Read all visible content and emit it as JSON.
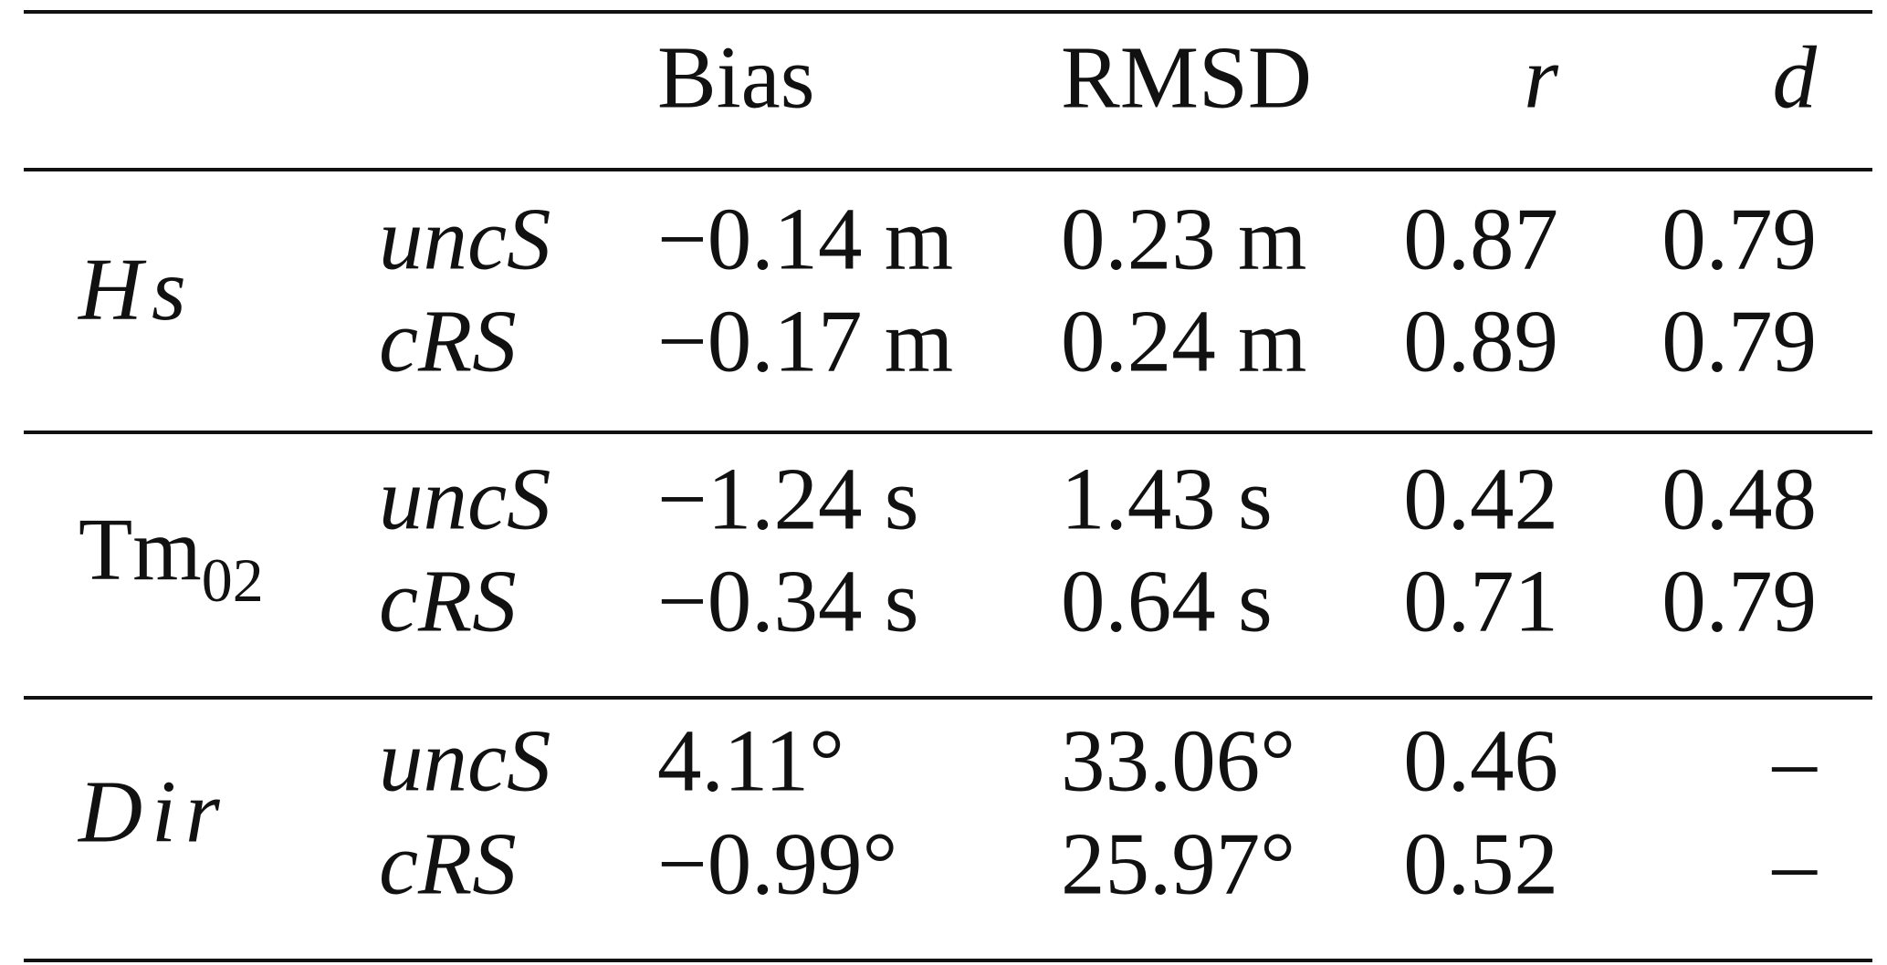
{
  "table": {
    "header": [
      "Bias",
      "RMSD",
      "r",
      "d"
    ],
    "groups": [
      {
        "label": "Hs",
        "rows": [
          {
            "method": "uncS",
            "cells": [
              "−0.14 m",
              "0.23 m",
              "0.87",
              "0.79"
            ]
          },
          {
            "method": "cRS",
            "cells": [
              "−0.17 m",
              "0.24 m",
              "0.89",
              "0.79"
            ]
          }
        ]
      },
      {
        "label": "Tm",
        "subscript": "02",
        "rows": [
          {
            "method": "uncS",
            "cells": [
              "−1.24 s",
              "1.43 s",
              "0.42",
              "0.48"
            ]
          },
          {
            "method": "cRS",
            "cells": [
              "−0.34 s",
              "0.64 s",
              "0.71",
              "0.79"
            ]
          }
        ]
      },
      {
        "label": "Dir",
        "rows": [
          {
            "method": "uncS",
            "cells": [
              "4.11°",
              "33.06°",
              "0.46",
              "–"
            ]
          },
          {
            "method": "cRS",
            "cells": [
              "−0.99°",
              "25.97°",
              "0.52",
              "–"
            ]
          }
        ]
      }
    ]
  }
}
